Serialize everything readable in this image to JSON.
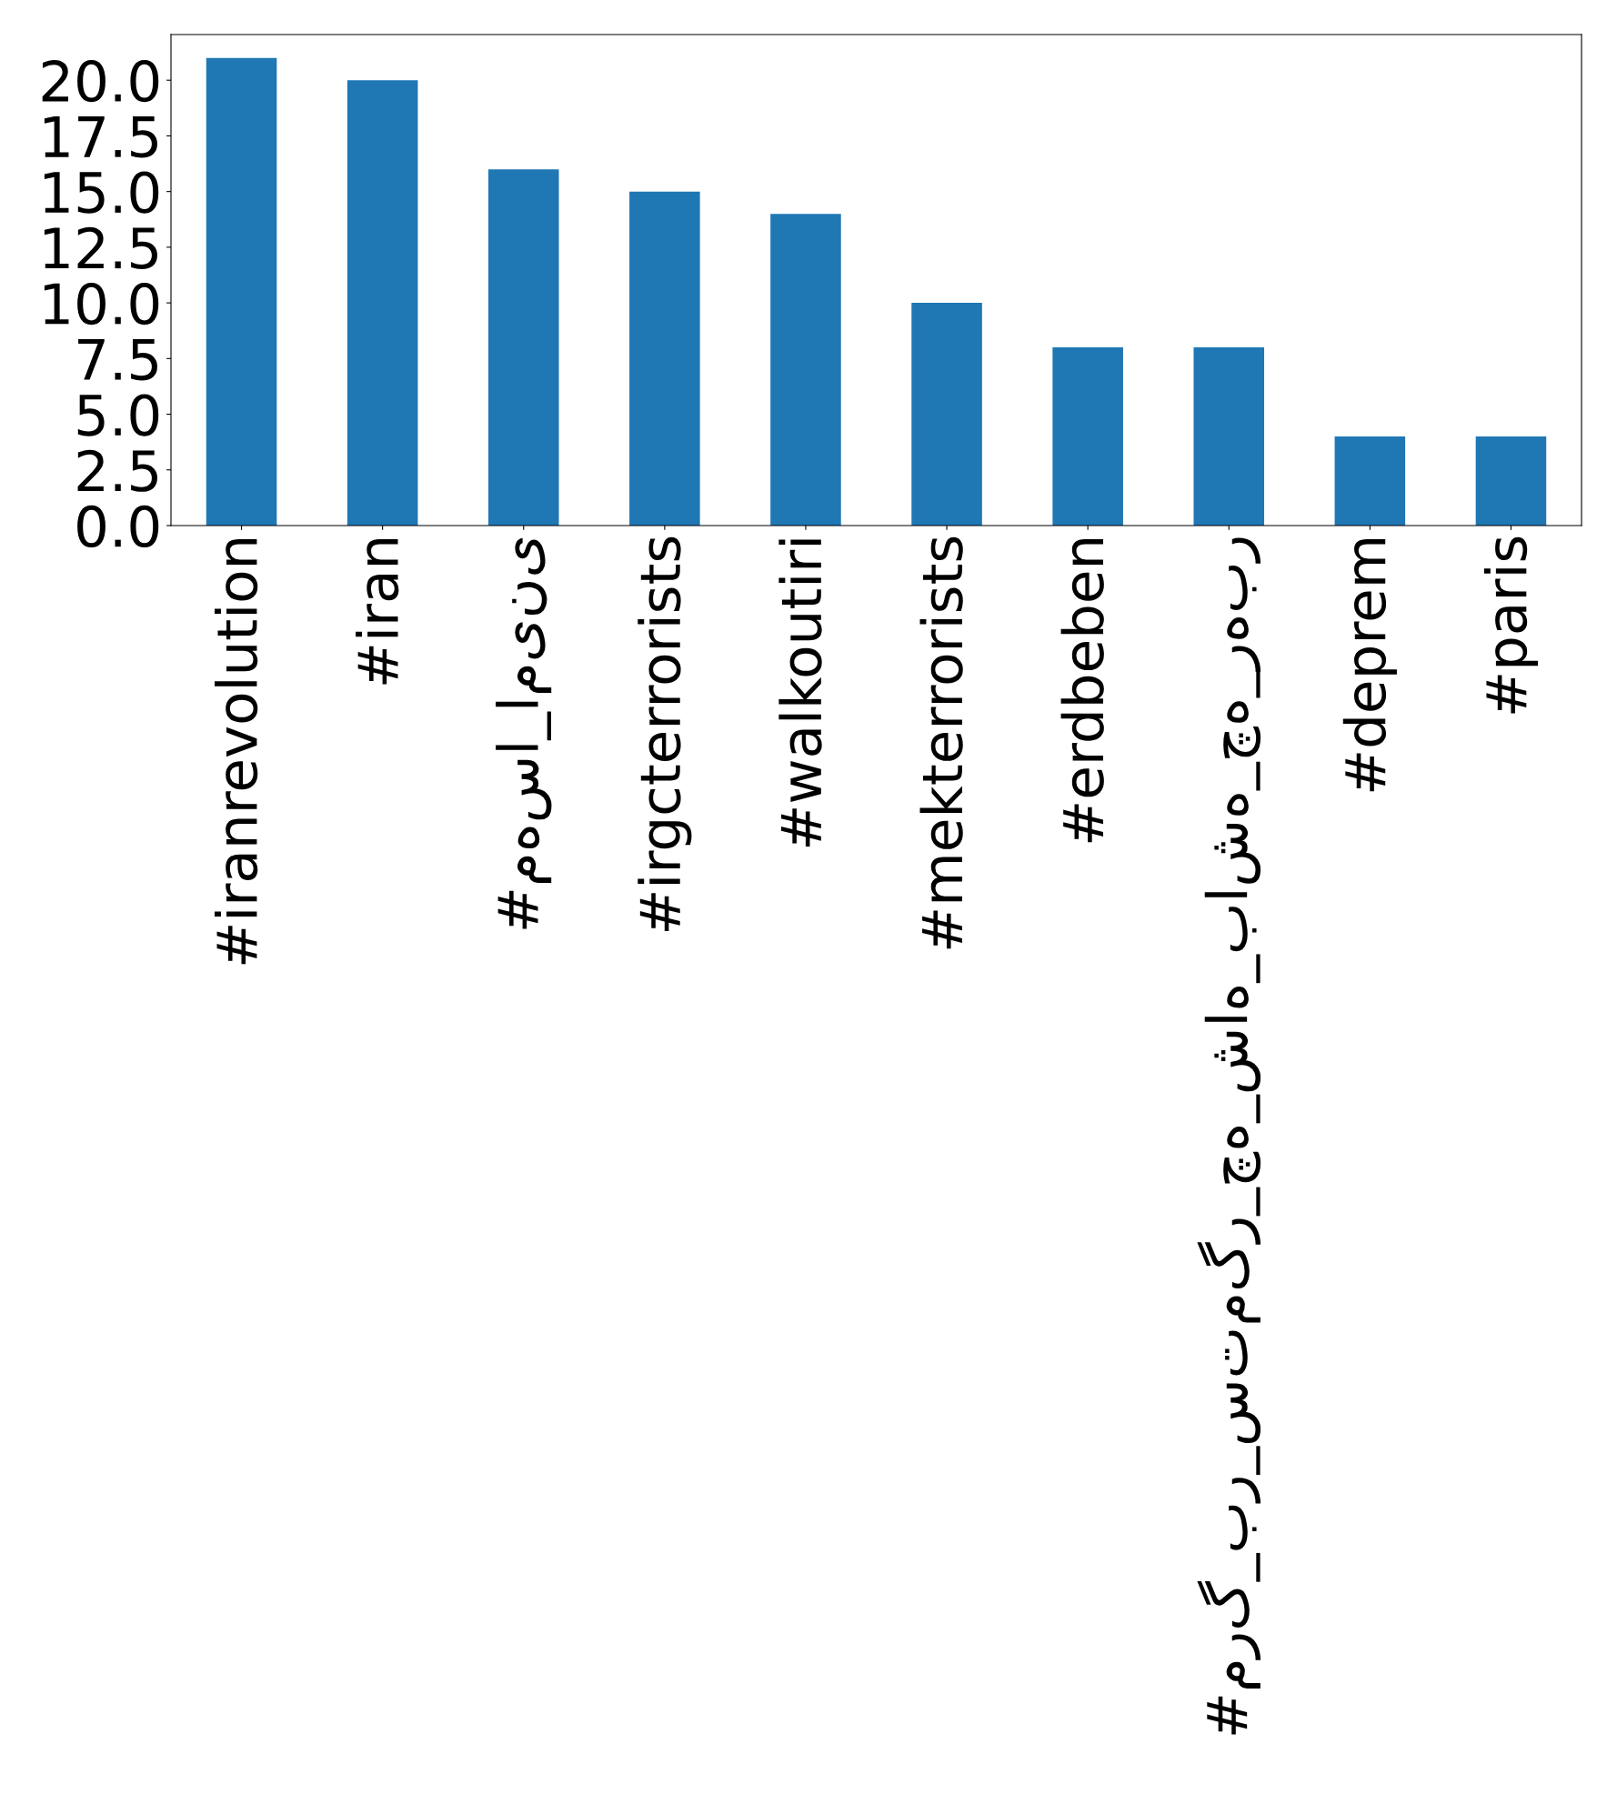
{
  "chart_data": {
    "type": "bar",
    "categories": [
      "#iranrevolution",
      "#iran",
      "#مهسا_امینی",
      "#irgcterrorists",
      "#walkoutiri",
      "#mekterrorists",
      "#erdbeben",
      "#مرگ_بر_ستمگر_چه_شاه_باشه_چه_رهبر",
      "#deprem",
      "#paris"
    ],
    "values": [
      21,
      20,
      16,
      15,
      14,
      10,
      8,
      8,
      4,
      4
    ],
    "color": "#1f77b4",
    "ylim": [
      0,
      22.05
    ],
    "yticks": [
      {
        "value": 0,
        "label": "0.0"
      },
      {
        "value": 2.5,
        "label": "2.5"
      },
      {
        "value": 5,
        "label": "5.0"
      },
      {
        "value": 7.5,
        "label": "7.5"
      },
      {
        "value": 10,
        "label": "10.0"
      },
      {
        "value": 12.5,
        "label": "12.5"
      },
      {
        "value": 15,
        "label": "15.0"
      },
      {
        "value": 17.5,
        "label": "17.5"
      },
      {
        "value": 20,
        "label": "20.0"
      }
    ],
    "grid": false
  }
}
